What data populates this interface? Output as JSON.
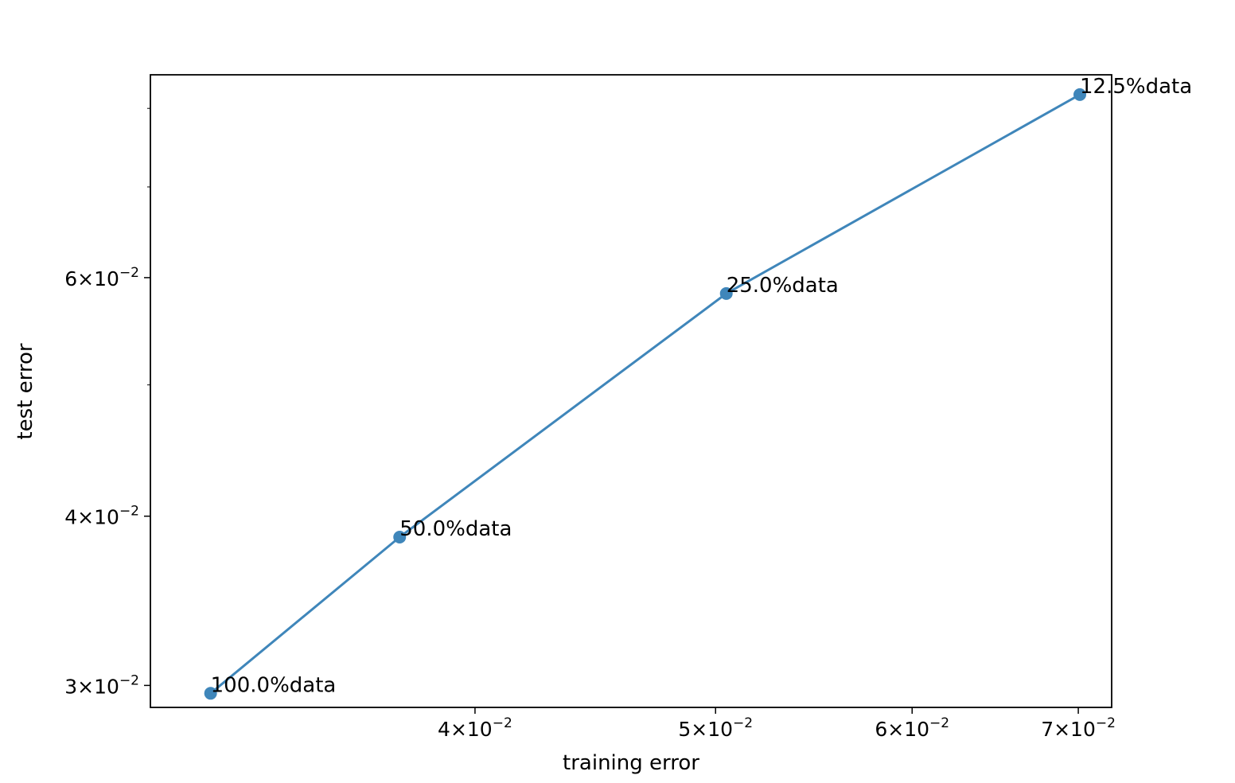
{
  "chart_data": {
    "type": "line",
    "xscale": "log",
    "yscale": "log",
    "xlabel": "training error",
    "ylabel": "test error",
    "xlim": [
      0.0296,
      0.0722
    ],
    "ylim": [
      0.0289,
      0.0847
    ],
    "xticks": [
      {
        "value": 0.04,
        "mantissa": "4",
        "exponent": "−2"
      },
      {
        "value": 0.05,
        "mantissa": "5",
        "exponent": "−2"
      },
      {
        "value": 0.06,
        "mantissa": "6",
        "exponent": "−2"
      },
      {
        "value": 0.07,
        "mantissa": "7",
        "exponent": "−2"
      }
    ],
    "yticks": [
      {
        "value": 0.03,
        "mantissa": "3",
        "exponent": "−2"
      },
      {
        "value": 0.04,
        "mantissa": "4",
        "exponent": "−2"
      },
      {
        "value": 0.06,
        "mantissa": "6",
        "exponent": "−2"
      }
    ],
    "yminor_ticks": [
      0.05,
      0.07,
      0.08
    ],
    "series": [
      {
        "color": "#3f86ba",
        "x": [
          0.0313,
          0.0373,
          0.0505,
          0.0701
        ],
        "y": [
          0.0296,
          0.0386,
          0.0584,
          0.0819
        ],
        "labels": [
          "100.0%data",
          "50.0%data",
          "25.0%data",
          "12.5%data"
        ]
      }
    ],
    "grid": false,
    "legend": "none"
  }
}
